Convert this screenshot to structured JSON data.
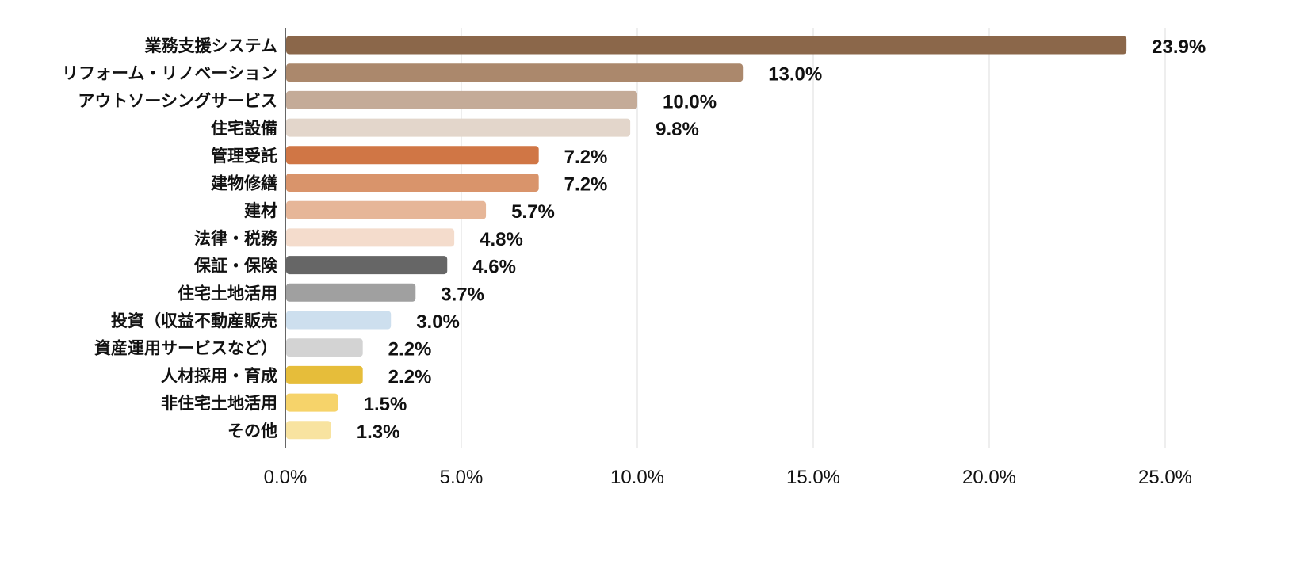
{
  "chart_data": {
    "type": "bar",
    "orientation": "horizontal",
    "title": "",
    "xlabel": "",
    "ylabel": "",
    "xlim": [
      0,
      25
    ],
    "grid": true,
    "x_ticks": [
      "0.0%",
      "5.0%",
      "10.0%",
      "15.0%",
      "20.0%",
      "25.0%"
    ],
    "x_tick_values": [
      0,
      5,
      10,
      15,
      20,
      25
    ],
    "categories": [
      "業務支援システム",
      "リフォーム・リノベーション",
      "アウトソーシングサービス",
      "住宅設備",
      "管理受託",
      "建物修繕",
      "建材",
      "法律・税務",
      "保証・保険",
      "住宅土地活用",
      "投資（収益不動産販売",
      "資産運用サービスなど）",
      "人材採用・育成",
      "非住宅土地活用",
      "その他"
    ],
    "values": [
      23.9,
      13.0,
      10.0,
      9.8,
      7.2,
      7.2,
      5.7,
      4.8,
      4.6,
      3.7,
      3.0,
      2.2,
      2.2,
      1.5,
      1.3
    ],
    "value_labels": [
      "23.9%",
      "13.0%",
      "10.0%",
      "9.8%",
      "7.2%",
      "7.2%",
      "5.7%",
      "4.8%",
      "4.6%",
      "3.7%",
      "3.0%",
      "2.2%",
      "2.2%",
      "1.5%",
      "1.3%"
    ],
    "colors": [
      "#8b674a",
      "#ab886c",
      "#c4ab98",
      "#e3d6cb",
      "#d07645",
      "#d9946b",
      "#e6b698",
      "#f4dccc",
      "#666666",
      "#a0a0a0",
      "#cddfee",
      "#d3d3d3",
      "#e6bd3a",
      "#f6d36a",
      "#f8e3a0"
    ]
  }
}
